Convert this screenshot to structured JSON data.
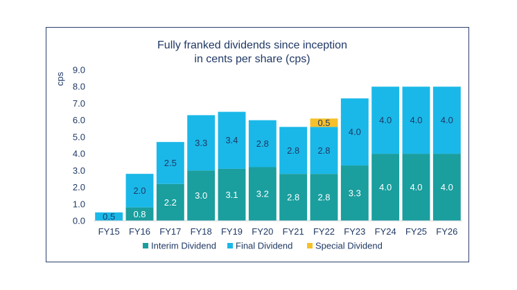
{
  "chart_data": {
    "type": "bar",
    "stacked": true,
    "title": [
      "Fully franked dividends since inception",
      "in cents per share (cps)"
    ],
    "ylabel": "cps",
    "xlabel": "",
    "ylim": [
      0,
      9
    ],
    "yticks": [
      "0.0",
      "1.0",
      "2.0",
      "3.0",
      "4.0",
      "5.0",
      "6.0",
      "7.0",
      "8.0",
      "9.0"
    ],
    "grid": false,
    "legend_position": "bottom",
    "categories": [
      "FY15",
      "FY16",
      "FY17",
      "FY18",
      "FY19",
      "FY20",
      "FY21",
      "FY22",
      "FY23",
      "FY24",
      "FY25",
      "FY26"
    ],
    "series": [
      {
        "name": "Interim Dividend",
        "color": "#1a9e9e",
        "label_color": "#ffffff",
        "values": [
          0,
          0.8,
          2.2,
          3.0,
          3.1,
          3.2,
          2.8,
          2.8,
          3.3,
          4.0,
          4.0,
          4.0
        ],
        "labels": [
          "",
          "0.8",
          "2.2",
          "3.0",
          "3.1",
          "3.2",
          "2.8",
          "2.8",
          "3.3",
          "4.0",
          "4.0",
          "4.0"
        ]
      },
      {
        "name": "Final Dividend",
        "color": "#1ab8e8",
        "label_color": "#1f3864",
        "values": [
          0.5,
          2.0,
          2.5,
          3.3,
          3.4,
          2.8,
          2.8,
          2.8,
          4.0,
          4.0,
          4.0,
          4.0
        ],
        "labels": [
          "0.5",
          "2.0",
          "2.5",
          "3.3",
          "3.4",
          "2.8",
          "2.8",
          "2.8",
          "4.0",
          "4.0",
          "4.0",
          "4.0"
        ]
      },
      {
        "name": "Special Dividend",
        "color": "#f5c02a",
        "label_color": "#1f3864",
        "values": [
          0,
          0,
          0,
          0,
          0,
          0,
          0,
          0.5,
          0,
          0,
          0,
          0
        ],
        "labels": [
          "",
          "",
          "",
          "",
          "",
          "",
          "",
          "0.5",
          "",
          "",
          "",
          ""
        ]
      }
    ]
  }
}
